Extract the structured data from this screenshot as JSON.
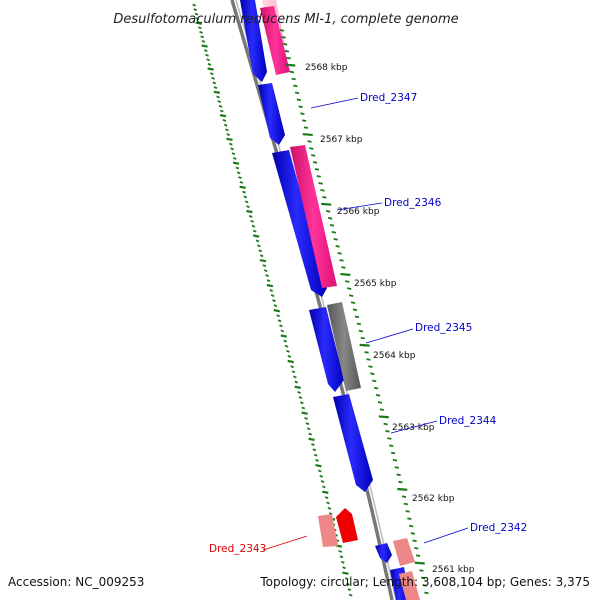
{
  "title": "Desulfotomaculum reducens MI-1, complete genome",
  "accession": "Accession: NC_009253",
  "summary": "Topology: circular; Length: 3,608,104 bp; Genes: 3,375",
  "colors": {
    "backbone": "#888888",
    "forward_cds": "#0000ee",
    "reverse_pink": "#ee2288",
    "gray_feature": "#666666",
    "red_feature": "#ee0000",
    "light_red_feature": "#ee8888",
    "gc_ticks": "#1a7a1a",
    "label_blue": "#0000cc",
    "label_red": "#dd0000"
  },
  "ticks": [
    {
      "text": "2568 kbp"
    },
    {
      "text": "2567 kbp"
    },
    {
      "text": "2566 kbp"
    },
    {
      "text": "2565 kbp"
    },
    {
      "text": "2564 kbp"
    },
    {
      "text": "2563 kbp"
    },
    {
      "text": "2562 kbp"
    },
    {
      "text": "2561 kbp"
    }
  ],
  "genes": [
    {
      "name": "Dred_2347",
      "color": "label_blue"
    },
    {
      "name": "Dred_2346",
      "color": "label_blue"
    },
    {
      "name": "Dred_2345",
      "color": "label_blue"
    },
    {
      "name": "Dred_2344",
      "color": "label_blue"
    },
    {
      "name": "Dred_2343",
      "color": "label_red"
    },
    {
      "name": "Dred_2342",
      "color": "label_blue"
    }
  ]
}
